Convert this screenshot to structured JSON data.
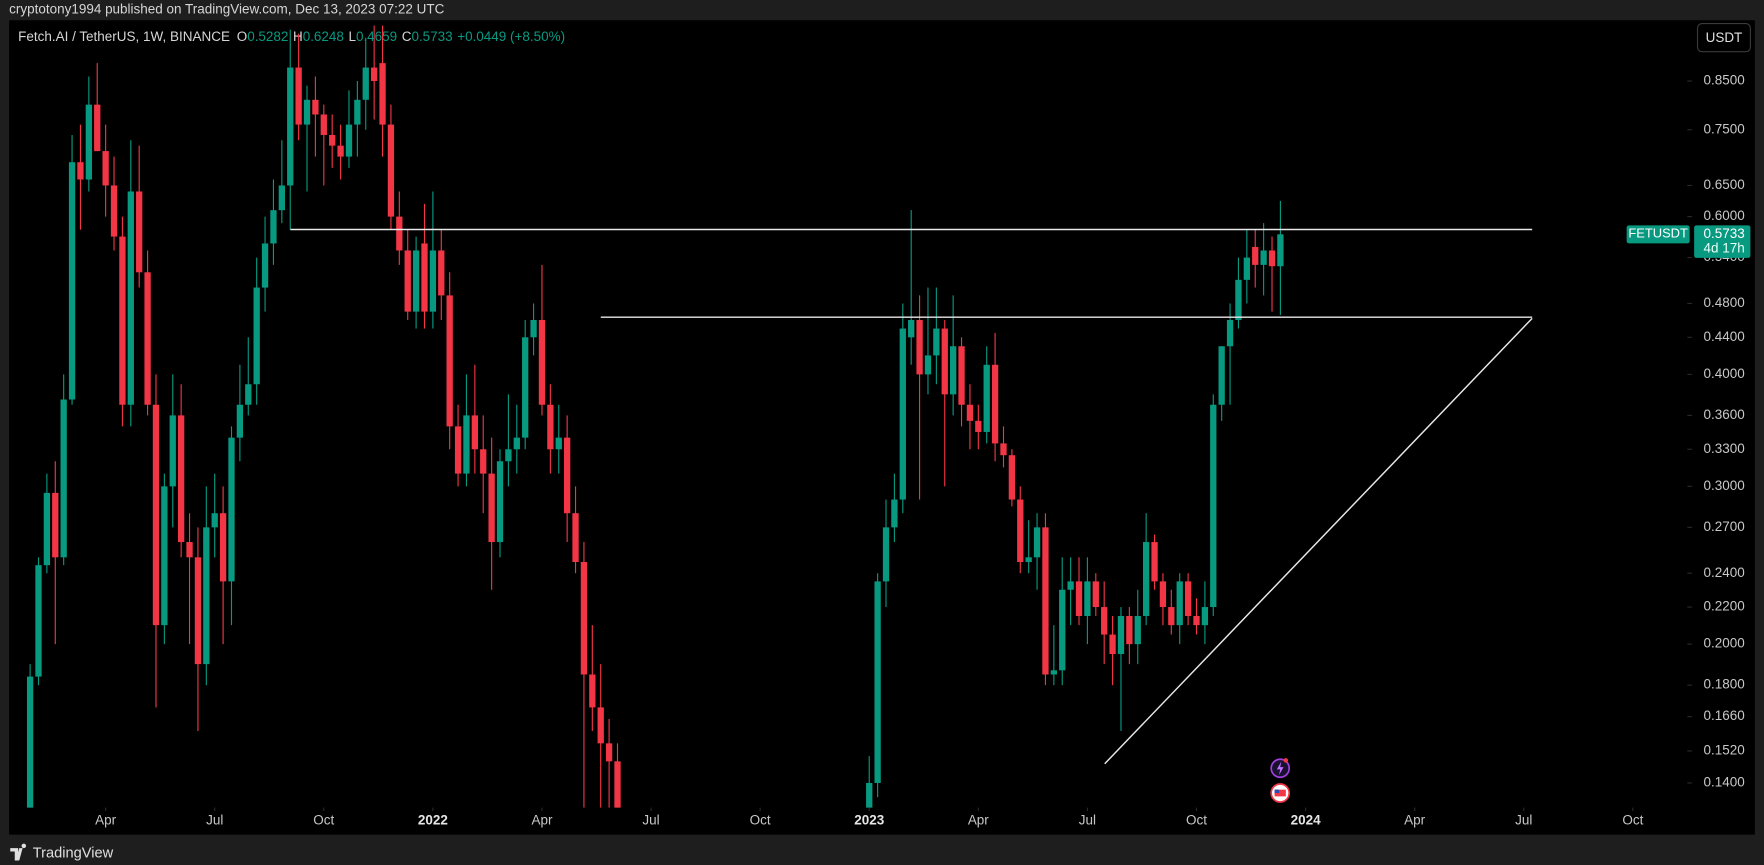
{
  "header": {
    "byline": "cryptotony1994 published on TradingView.com, Dec 13, 2023 07:22 UTC"
  },
  "footer": {
    "brand": "TradingView"
  },
  "chart_data": {
    "type": "candlestick",
    "title": "Fetch.AI / TetherUS, 1W, BINANCE",
    "legend": {
      "fields": [
        {
          "key": "O",
          "value": "0.5282"
        },
        {
          "key": "H",
          "value": "0.6248"
        },
        {
          "key": "L",
          "value": "0.4659"
        },
        {
          "key": "C",
          "value": "0.5733"
        }
      ],
      "change": "+0.0449 (+8.50%)"
    },
    "currency": "USDT",
    "up_color": "#089981",
    "down_color": "#f23645",
    "log_scale": true,
    "grid": false,
    "ylim": [
      0.1314,
      0.988
    ],
    "yticks": [
      {
        "value": 0.14,
        "label": "0.1400"
      },
      {
        "value": 0.152,
        "label": "0.1520"
      },
      {
        "value": 0.166,
        "label": "0.1660"
      },
      {
        "value": 0.18,
        "label": "0.1800"
      },
      {
        "value": 0.2,
        "label": "0.2000"
      },
      {
        "value": 0.22,
        "label": "0.2200"
      },
      {
        "value": 0.24,
        "label": "0.2400"
      },
      {
        "value": 0.27,
        "label": "0.2700"
      },
      {
        "value": 0.3,
        "label": "0.3000"
      },
      {
        "value": 0.33,
        "label": "0.3300"
      },
      {
        "value": 0.36,
        "label": "0.3600"
      },
      {
        "value": 0.4,
        "label": "0.4000"
      },
      {
        "value": 0.44,
        "label": "0.4400"
      },
      {
        "value": 0.48,
        "label": "0.4800"
      },
      {
        "value": 0.54,
        "label": "0.5400"
      },
      {
        "value": 0.6,
        "label": "0.6000"
      },
      {
        "value": 0.65,
        "label": "0.6500"
      },
      {
        "value": 0.75,
        "label": "0.7500"
      },
      {
        "value": 0.85,
        "label": "0.8500"
      }
    ],
    "xlim": [
      -2.5,
      197.5
    ],
    "xticks": [
      {
        "value": 9,
        "label": "Apr"
      },
      {
        "value": 22,
        "label": "Jul"
      },
      {
        "value": 35,
        "label": "Oct"
      },
      {
        "value": 48,
        "label": "2022"
      },
      {
        "value": 61,
        "label": "Apr"
      },
      {
        "value": 74,
        "label": "Jul"
      },
      {
        "value": 87,
        "label": "Oct"
      },
      {
        "value": 100,
        "label": "2023"
      },
      {
        "value": 113,
        "label": "Apr"
      },
      {
        "value": 126,
        "label": "Jul"
      },
      {
        "value": 139,
        "label": "Oct"
      },
      {
        "value": 152,
        "label": "2024"
      },
      {
        "value": 165,
        "label": "Apr"
      },
      {
        "value": 178,
        "label": "Jul"
      },
      {
        "value": 191,
        "label": "Oct"
      }
    ],
    "last_price": {
      "symbol": "FETUSDT",
      "value": 0.5733,
      "label": "0.5733",
      "countdown": "4d 17h"
    },
    "series": [
      {
        "name": "FETUSDT",
        "open": [
          0.13,
          0.184,
          0.245,
          0.295,
          0.25,
          0.375,
          0.69,
          0.66,
          0.8,
          0.71,
          0.65,
          0.57,
          0.37,
          0.64,
          0.52,
          0.37,
          0.21,
          0.3,
          0.36,
          0.26,
          0.25,
          0.19,
          0.27,
          0.28,
          0.235,
          0.34,
          0.37,
          0.39,
          0.5,
          0.56,
          0.61,
          0.65,
          0.88,
          0.76,
          0.81,
          0.78,
          0.74,
          0.72,
          0.7,
          0.76,
          0.81,
          0.88,
          0.89,
          0.76,
          0.6,
          0.55,
          0.47,
          0.56,
          0.47,
          0.55,
          0.49,
          0.35,
          0.31,
          0.36,
          0.33,
          0.31,
          0.26,
          0.32,
          0.33,
          0.34,
          0.44,
          0.46,
          0.37,
          0.33,
          0.34,
          0.28,
          0.247,
          0.185,
          0.17,
          0.155,
          0.148,
          null,
          null,
          null,
          null,
          null,
          null,
          null,
          null,
          null,
          null,
          null,
          null,
          null,
          null,
          null,
          null,
          null,
          null,
          null,
          null,
          null,
          null,
          null,
          null,
          null,
          null,
          null,
          null,
          null,
          0.12,
          0.14,
          0.235,
          0.27,
          0.29,
          0.44,
          0.46,
          0.4,
          0.42,
          0.45,
          0.38,
          0.43,
          0.37,
          0.355,
          0.345,
          0.41,
          0.335,
          0.325,
          0.29,
          0.247,
          0.25,
          0.27,
          0.185,
          0.187,
          0.23,
          0.235,
          0.215,
          0.235,
          0.22,
          0.205,
          0.195,
          0.215,
          0.2,
          0.215,
          0.26,
          0.235,
          0.22,
          0.21,
          0.235,
          0.215,
          0.21,
          0.22,
          0.37,
          0.43,
          0.46,
          0.51,
          0.555,
          0.53,
          0.55,
          0.5282
        ],
        "high": [
          0.19,
          0.25,
          0.31,
          0.32,
          0.4,
          0.74,
          0.76,
          0.86,
          0.89,
          0.76,
          0.7,
          0.6,
          0.73,
          0.72,
          0.55,
          0.4,
          0.31,
          0.4,
          0.39,
          0.28,
          0.27,
          0.3,
          0.31,
          0.3,
          0.35,
          0.41,
          0.44,
          0.54,
          0.6,
          0.66,
          0.73,
          0.97,
          0.96,
          0.84,
          0.86,
          0.8,
          0.78,
          0.76,
          0.83,
          0.85,
          0.95,
          0.98,
          0.98,
          0.8,
          0.64,
          0.58,
          0.57,
          0.62,
          0.64,
          0.58,
          0.52,
          0.37,
          0.4,
          0.41,
          0.36,
          0.34,
          0.33,
          0.38,
          0.37,
          0.46,
          0.48,
          0.53,
          0.39,
          0.37,
          0.36,
          0.3,
          0.26,
          0.21,
          0.19,
          0.165,
          0.155,
          null,
          null,
          null,
          null,
          null,
          null,
          null,
          null,
          null,
          null,
          null,
          null,
          null,
          null,
          null,
          null,
          null,
          null,
          null,
          null,
          null,
          null,
          null,
          null,
          null,
          null,
          null,
          null,
          null,
          0.15,
          0.24,
          0.29,
          0.31,
          0.48,
          0.61,
          0.49,
          0.5,
          0.5,
          0.46,
          0.49,
          0.44,
          0.39,
          0.37,
          0.43,
          0.445,
          0.35,
          0.33,
          0.3,
          0.275,
          0.28,
          0.28,
          0.21,
          0.25,
          0.25,
          0.25,
          0.25,
          0.24,
          0.235,
          0.215,
          0.22,
          0.22,
          0.23,
          0.28,
          0.265,
          0.24,
          0.23,
          0.24,
          0.24,
          0.225,
          0.235,
          0.38,
          0.43,
          0.48,
          0.54,
          0.58,
          0.58,
          0.59,
          0.57,
          0.6248
        ],
        "low": [
          0.125,
          0.18,
          0.24,
          0.2,
          0.245,
          0.37,
          0.58,
          0.64,
          0.71,
          0.6,
          0.55,
          0.35,
          0.35,
          0.5,
          0.36,
          0.17,
          0.2,
          0.27,
          0.25,
          0.2,
          0.16,
          0.18,
          0.25,
          0.2,
          0.21,
          0.32,
          0.36,
          0.37,
          0.47,
          0.53,
          0.59,
          0.58,
          0.73,
          0.64,
          0.7,
          0.65,
          0.68,
          0.66,
          0.68,
          0.7,
          0.75,
          0.77,
          0.7,
          0.58,
          0.53,
          0.46,
          0.45,
          0.45,
          0.45,
          0.46,
          0.33,
          0.3,
          0.3,
          0.31,
          0.28,
          0.23,
          0.25,
          0.3,
          0.31,
          0.33,
          0.42,
          0.36,
          0.31,
          0.31,
          0.26,
          0.24,
          0.13,
          0.16,
          0.13,
          0.13,
          0.12,
          null,
          null,
          null,
          null,
          null,
          null,
          null,
          null,
          null,
          null,
          null,
          null,
          null,
          null,
          null,
          null,
          null,
          null,
          null,
          null,
          null,
          null,
          null,
          null,
          null,
          null,
          null,
          null,
          null,
          0.12,
          0.135,
          0.22,
          0.26,
          0.28,
          0.41,
          0.29,
          0.38,
          0.39,
          0.3,
          0.36,
          0.35,
          0.33,
          0.33,
          0.335,
          0.32,
          0.315,
          0.285,
          0.24,
          0.24,
          0.23,
          0.18,
          0.18,
          0.18,
          0.21,
          0.21,
          0.2,
          0.215,
          0.19,
          0.18,
          0.16,
          0.19,
          0.19,
          0.21,
          0.23,
          0.21,
          0.205,
          0.2,
          0.21,
          0.205,
          0.2,
          0.215,
          0.355,
          0.37,
          0.45,
          0.48,
          0.5,
          0.49,
          0.47,
          0.4659
        ],
        "close": [
          0.184,
          0.245,
          0.295,
          0.25,
          0.375,
          0.69,
          0.66,
          0.8,
          0.71,
          0.65,
          0.57,
          0.37,
          0.64,
          0.52,
          0.37,
          0.21,
          0.3,
          0.36,
          0.26,
          0.25,
          0.19,
          0.27,
          0.28,
          0.235,
          0.34,
          0.37,
          0.39,
          0.5,
          0.56,
          0.61,
          0.65,
          0.88,
          0.76,
          0.81,
          0.78,
          0.74,
          0.72,
          0.7,
          0.76,
          0.81,
          0.88,
          0.85,
          0.76,
          0.6,
          0.55,
          0.47,
          0.55,
          0.47,
          0.55,
          0.49,
          0.35,
          0.31,
          0.36,
          0.33,
          0.31,
          0.26,
          0.32,
          0.33,
          0.34,
          0.44,
          0.46,
          0.37,
          0.33,
          0.34,
          0.28,
          0.247,
          0.185,
          0.17,
          0.155,
          0.148,
          0.13,
          null,
          null,
          null,
          null,
          null,
          null,
          null,
          null,
          null,
          null,
          null,
          null,
          null,
          null,
          null,
          null,
          null,
          null,
          null,
          null,
          null,
          null,
          null,
          null,
          null,
          null,
          null,
          null,
          null,
          0.14,
          0.235,
          0.27,
          0.29,
          0.45,
          0.46,
          0.4,
          0.42,
          0.45,
          0.38,
          0.43,
          0.37,
          0.355,
          0.345,
          0.41,
          0.335,
          0.325,
          0.29,
          0.247,
          0.25,
          0.27,
          0.185,
          0.187,
          0.23,
          0.235,
          0.215,
          0.235,
          0.22,
          0.205,
          0.195,
          0.215,
          0.2,
          0.215,
          0.26,
          0.235,
          0.22,
          0.21,
          0.235,
          0.215,
          0.21,
          0.22,
          0.37,
          0.43,
          0.46,
          0.51,
          0.54,
          0.53,
          0.55,
          0.5282,
          0.5733
        ]
      }
    ]
  }
}
